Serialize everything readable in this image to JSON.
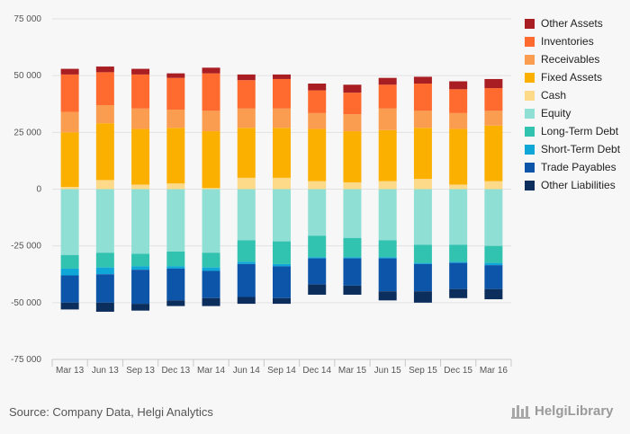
{
  "chart_data": {
    "type": "bar",
    "stacked": true,
    "categories": [
      "Mar 13",
      "Jun 13",
      "Sep 13",
      "Dec 13",
      "Mar 14",
      "Jun 14",
      "Sep 14",
      "Dec 14",
      "Mar 15",
      "Jun 15",
      "Sep 15",
      "Dec 15",
      "Mar 16"
    ],
    "ylim": [
      -75000,
      75000
    ],
    "yticks": [
      -75000,
      -50000,
      -25000,
      0,
      25000,
      50000,
      75000
    ],
    "ytick_labels": [
      "-75 000",
      "-50 000",
      "-25 000",
      "0",
      "25 000",
      "50 000",
      "75 000"
    ],
    "grid": true,
    "legend_position": "right",
    "assets": [
      {
        "name": "Cash",
        "color": "#fdd98a",
        "values": [
          1000,
          4000,
          2000,
          2500,
          500,
          5000,
          5000,
          3500,
          3000,
          3500,
          4500,
          2000,
          3500
        ]
      },
      {
        "name": "Fixed Assets",
        "color": "#fbb000",
        "values": [
          24000,
          25000,
          24500,
          24500,
          25000,
          22000,
          22000,
          23000,
          22500,
          22500,
          22500,
          24500,
          24500
        ]
      },
      {
        "name": "Receivables",
        "color": "#fb9d50",
        "values": [
          9000,
          8000,
          9000,
          8000,
          9000,
          8500,
          8500,
          7000,
          7500,
          9500,
          7500,
          7000,
          6500
        ]
      },
      {
        "name": "Inventories",
        "color": "#ff6b2e",
        "values": [
          16500,
          14500,
          15000,
          14000,
          16500,
          12500,
          13000,
          10000,
          9500,
          10500,
          12000,
          10500,
          10000
        ]
      },
      {
        "name": "Other Assets",
        "color": "#a81e23",
        "values": [
          2500,
          2500,
          2500,
          2000,
          2500,
          2500,
          2000,
          3000,
          3500,
          3000,
          3000,
          3500,
          4000
        ]
      }
    ],
    "liabilities": [
      {
        "name": "Equity",
        "color": "#90dfd5",
        "values": [
          -29000,
          -28000,
          -28500,
          -27500,
          -28000,
          -22500,
          -23000,
          -20500,
          -21500,
          -22500,
          -24500,
          -24500,
          -25000
        ]
      },
      {
        "name": "Long-Term Debt",
        "color": "#32c3b0",
        "values": [
          -6000,
          -6500,
          -5500,
          -6500,
          -6500,
          -9500,
          -10000,
          -9500,
          -8500,
          -7500,
          -8000,
          -7500,
          -7500
        ]
      },
      {
        "name": "Short-Term Debt",
        "color": "#0fa6d8",
        "values": [
          -3000,
          -3000,
          -1500,
          -1000,
          -1500,
          -1000,
          -1000,
          -500,
          -500,
          -500,
          -500,
          -500,
          -1000
        ]
      },
      {
        "name": "Trade Payables",
        "color": "#0d55a8",
        "values": [
          -12000,
          -12500,
          -15000,
          -14000,
          -12000,
          -14500,
          -14000,
          -11500,
          -12000,
          -14500,
          -12000,
          -11500,
          -10500
        ]
      },
      {
        "name": "Other Liabilities",
        "color": "#0c2e5c",
        "values": [
          -3000,
          -4000,
          -3000,
          -2500,
          -3500,
          -3000,
          -2500,
          -4500,
          -4000,
          -4000,
          -5000,
          -4000,
          -4500
        ]
      }
    ],
    "legend": [
      {
        "name": "Other Assets",
        "color": "#a81e23"
      },
      {
        "name": "Inventories",
        "color": "#ff6b2e"
      },
      {
        "name": "Receivables",
        "color": "#fb9d50"
      },
      {
        "name": "Fixed Assets",
        "color": "#fbb000"
      },
      {
        "name": "Cash",
        "color": "#fdd98a"
      },
      {
        "name": "Equity",
        "color": "#90dfd5"
      },
      {
        "name": "Long-Term Debt",
        "color": "#32c3b0"
      },
      {
        "name": "Short-Term Debt",
        "color": "#0fa6d8"
      },
      {
        "name": "Trade Payables",
        "color": "#0d55a8"
      },
      {
        "name": "Other Liabilities",
        "color": "#0c2e5c"
      }
    ]
  },
  "source_text": "Source: Company Data, Helgi Analytics",
  "brand_text": "HelgiLibrary"
}
